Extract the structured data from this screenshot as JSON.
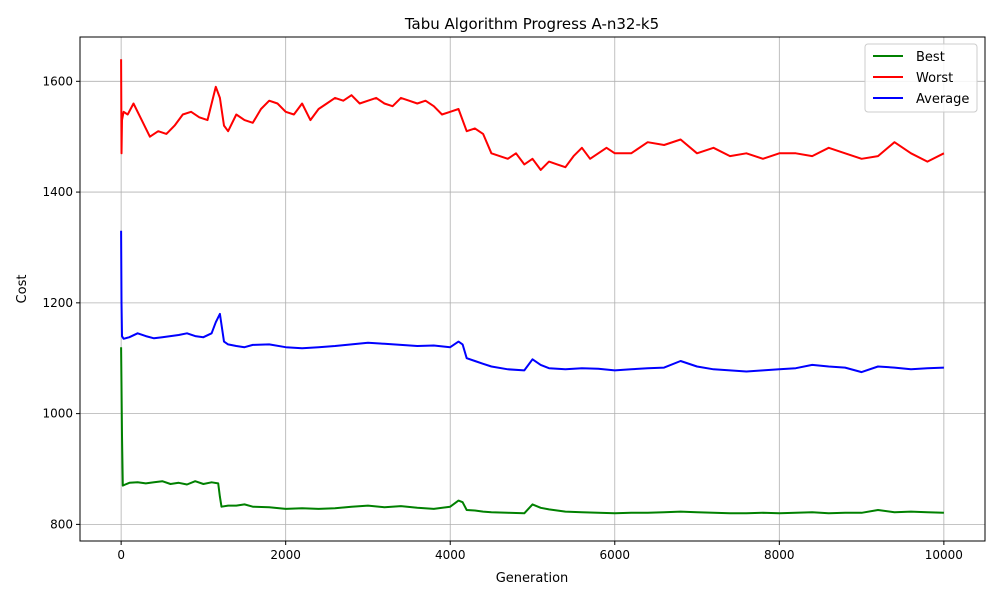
{
  "chart_data": {
    "type": "line",
    "title": "Tabu Algorithm Progress A-n32-k5",
    "xlabel": "Generation",
    "ylabel": "Cost",
    "xlim": [
      -500,
      10500
    ],
    "ylim": [
      770,
      1680
    ],
    "xticks": [
      0,
      2000,
      4000,
      6000,
      8000,
      10000
    ],
    "xtick_labels": [
      "0",
      "2000",
      "4000",
      "6000",
      "8000",
      "10000"
    ],
    "yticks": [
      800,
      1000,
      1200,
      1400,
      1600
    ],
    "ytick_labels": [
      "800",
      "1000",
      "1200",
      "1400",
      "1600"
    ],
    "grid": true,
    "legend_position": "top-right",
    "series": [
      {
        "name": "Best",
        "color": "#008000",
        "x": [
          0,
          10,
          20,
          50,
          100,
          200,
          300,
          400,
          500,
          600,
          700,
          800,
          900,
          1000,
          1100,
          1180,
          1200,
          1220,
          1300,
          1400,
          1500,
          1600,
          1800,
          2000,
          2200,
          2400,
          2600,
          2800,
          3000,
          3200,
          3400,
          3600,
          3800,
          4000,
          4100,
          4150,
          4200,
          4300,
          4400,
          4500,
          4700,
          4900,
          5000,
          5100,
          5200,
          5400,
          5600,
          5800,
          6000,
          6200,
          6400,
          6600,
          6800,
          7000,
          7200,
          7400,
          7600,
          7800,
          8000,
          8200,
          8400,
          8600,
          8800,
          9000,
          9200,
          9400,
          9600,
          9800,
          10000
        ],
        "y": [
          1120,
          960,
          870,
          872,
          875,
          876,
          874,
          876,
          878,
          873,
          875,
          872,
          878,
          873,
          876,
          874,
          850,
          832,
          834,
          834,
          836,
          832,
          831,
          828,
          829,
          828,
          829,
          832,
          834,
          831,
          833,
          830,
          828,
          832,
          843,
          840,
          826,
          825,
          823,
          822,
          821,
          820,
          836,
          830,
          827,
          823,
          822,
          821,
          820,
          821,
          821,
          822,
          823,
          822,
          821,
          820,
          820,
          821,
          820,
          821,
          822,
          820,
          821,
          821,
          826,
          822,
          823,
          822,
          821
        ]
      },
      {
        "name": "Worst",
        "color": "#ff0000",
        "x": [
          0,
          5,
          10,
          30,
          80,
          150,
          250,
          350,
          450,
          550,
          650,
          750,
          850,
          950,
          1050,
          1150,
          1200,
          1250,
          1300,
          1400,
          1500,
          1600,
          1700,
          1800,
          1900,
          2000,
          2100,
          2200,
          2300,
          2400,
          2500,
          2600,
          2700,
          2800,
          2900,
          3000,
          3100,
          3200,
          3300,
          3400,
          3500,
          3600,
          3700,
          3800,
          3900,
          4000,
          4100,
          4200,
          4300,
          4400,
          4500,
          4600,
          4700,
          4800,
          4900,
          5000,
          5100,
          5200,
          5300,
          5400,
          5500,
          5600,
          5700,
          5800,
          5900,
          6000,
          6200,
          6400,
          6600,
          6800,
          7000,
          7200,
          7400,
          7600,
          7800,
          8000,
          8200,
          8400,
          8600,
          8800,
          9000,
          9200,
          9400,
          9600,
          9800,
          10000
        ],
        "y": [
          1640,
          1470,
          1530,
          1545,
          1540,
          1560,
          1530,
          1500,
          1510,
          1505,
          1520,
          1540,
          1545,
          1535,
          1530,
          1590,
          1570,
          1520,
          1510,
          1540,
          1530,
          1525,
          1550,
          1565,
          1560,
          1545,
          1540,
          1560,
          1530,
          1550,
          1560,
          1570,
          1565,
          1575,
          1560,
          1565,
          1570,
          1560,
          1555,
          1570,
          1565,
          1560,
          1565,
          1555,
          1540,
          1545,
          1550,
          1510,
          1515,
          1505,
          1470,
          1465,
          1460,
          1470,
          1450,
          1460,
          1440,
          1455,
          1450,
          1445,
          1465,
          1480,
          1460,
          1470,
          1480,
          1470,
          1470,
          1490,
          1485,
          1495,
          1470,
          1480,
          1465,
          1470,
          1460,
          1470,
          1470,
          1465,
          1480,
          1470,
          1460,
          1465,
          1490,
          1470,
          1455,
          1470
        ]
      },
      {
        "name": "Average",
        "color": "#0000ff",
        "x": [
          0,
          5,
          10,
          30,
          100,
          200,
          300,
          400,
          500,
          600,
          700,
          800,
          900,
          1000,
          1100,
          1150,
          1200,
          1250,
          1300,
          1400,
          1500,
          1600,
          1800,
          2000,
          2200,
          2400,
          2600,
          2800,
          3000,
          3200,
          3400,
          3600,
          3800,
          4000,
          4100,
          4150,
          4200,
          4300,
          4400,
          4500,
          4700,
          4900,
          5000,
          5100,
          5200,
          5400,
          5600,
          5800,
          6000,
          6200,
          6400,
          6600,
          6800,
          7000,
          7200,
          7400,
          7600,
          7800,
          8000,
          8200,
          8400,
          8600,
          8800,
          9000,
          9200,
          9400,
          9600,
          9800,
          10000
        ],
        "y": [
          1330,
          1200,
          1140,
          1135,
          1138,
          1145,
          1140,
          1136,
          1138,
          1140,
          1142,
          1145,
          1140,
          1138,
          1145,
          1165,
          1180,
          1130,
          1125,
          1122,
          1120,
          1124,
          1125,
          1120,
          1118,
          1120,
          1122,
          1125,
          1128,
          1126,
          1124,
          1122,
          1123,
          1120,
          1130,
          1125,
          1100,
          1095,
          1090,
          1085,
          1080,
          1078,
          1098,
          1088,
          1082,
          1080,
          1082,
          1081,
          1078,
          1080,
          1082,
          1083,
          1095,
          1085,
          1080,
          1078,
          1076,
          1078,
          1080,
          1082,
          1088,
          1085,
          1083,
          1075,
          1085,
          1083,
          1080,
          1082,
          1083
        ]
      }
    ]
  }
}
